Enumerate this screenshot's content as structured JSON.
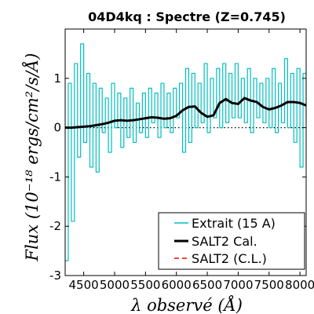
{
  "chart_data": {
    "type": "line",
    "title": "04D4kq : Spectre (Z=0.745)",
    "xlabel": "λ observé (Å)",
    "ylabel": "Flux (10⁻¹⁸ ergs/cm²/s/Å)",
    "xlim": [
      4200,
      8100
    ],
    "ylim": [
      -3,
      2
    ],
    "xticks": [
      4500,
      5000,
      5500,
      6000,
      6500,
      7000,
      7500,
      8000
    ],
    "yticks": [
      -3,
      -2,
      -1,
      0,
      1
    ],
    "ytick_labels": [
      "-3",
      "-2",
      "-1",
      "0",
      "1"
    ],
    "zero_line": "dotted",
    "legend_position": "lower-right",
    "series": [
      {
        "name": "Extrait (15 A)",
        "color": "#00bfbf",
        "style": "steps",
        "x": [
          4200,
          4250,
          4300,
          4350,
          4400,
          4450,
          4500,
          4550,
          4600,
          4650,
          4700,
          4750,
          4800,
          4850,
          4900,
          4950,
          5000,
          5050,
          5100,
          5150,
          5200,
          5250,
          5300,
          5350,
          5400,
          5450,
          5500,
          5550,
          5600,
          5650,
          5700,
          5750,
          5800,
          5850,
          5900,
          5950,
          6000,
          6050,
          6100,
          6150,
          6200,
          6250,
          6300,
          6350,
          6400,
          6450,
          6500,
          6550,
          6600,
          6650,
          6700,
          6750,
          6800,
          6850,
          6900,
          6950,
          7000,
          7050,
          7100,
          7150,
          7200,
          7250,
          7300,
          7350,
          7400,
          7450,
          7500,
          7550,
          7600,
          7650,
          7700,
          7750,
          7800,
          7850,
          7900,
          7950,
          8000,
          8050,
          8100
        ],
        "y": [
          -2.7,
          0.9,
          -1.9,
          1.3,
          -0.6,
          1.7,
          -0.3,
          1.1,
          -0.8,
          0.9,
          -0.9,
          0.8,
          -0.1,
          0.6,
          -0.5,
          0.9,
          0.0,
          0.7,
          -0.4,
          0.6,
          -0.2,
          0.8,
          -0.3,
          0.5,
          -0.1,
          0.7,
          -0.2,
          0.8,
          0.1,
          0.7,
          -0.2,
          0.9,
          0.0,
          0.7,
          -0.1,
          0.8,
          0.2,
          0.9,
          -0.5,
          1.2,
          -0.3,
          1.1,
          0.0,
          0.9,
          0.1,
          1.3,
          -0.1,
          1.0,
          0.2,
          1.2,
          0.0,
          1.3,
          0.1,
          1.1,
          0.2,
          1.3,
          0.2,
          1.0,
          0.1,
          1.2,
          -0.1,
          1.0,
          0.2,
          0.9,
          0.1,
          1.0,
          0.0,
          1.2,
          -0.1,
          0.9,
          0.1,
          1.4,
          0.0,
          1.1,
          -0.3,
          1.2,
          -0.8,
          1.1,
          0.2
        ]
      },
      {
        "name": "SALT2 Cal.",
        "color": "#000000",
        "style": "line",
        "x": [
          4200,
          4300,
          4400,
          4500,
          4600,
          4700,
          4800,
          4900,
          5000,
          5100,
          5200,
          5300,
          5400,
          5500,
          5600,
          5700,
          5800,
          5900,
          6000,
          6100,
          6200,
          6300,
          6400,
          6500,
          6600,
          6700,
          6800,
          6900,
          7000,
          7100,
          7200,
          7300,
          7400,
          7500,
          7600,
          7700,
          7800,
          7900,
          8000,
          8100
        ],
        "y": [
          0.0,
          0.0,
          0.01,
          0.02,
          0.03,
          0.05,
          0.07,
          0.1,
          0.14,
          0.15,
          0.14,
          0.15,
          0.17,
          0.19,
          0.21,
          0.2,
          0.18,
          0.19,
          0.24,
          0.35,
          0.42,
          0.43,
          0.3,
          0.22,
          0.25,
          0.5,
          0.58,
          0.5,
          0.48,
          0.6,
          0.55,
          0.52,
          0.42,
          0.37,
          0.4,
          0.45,
          0.52,
          0.52,
          0.5,
          0.45
        ]
      },
      {
        "name": "SALT2 (C.L.)",
        "color": "#ff0000",
        "style": "dashed",
        "x": [],
        "y": []
      }
    ]
  }
}
